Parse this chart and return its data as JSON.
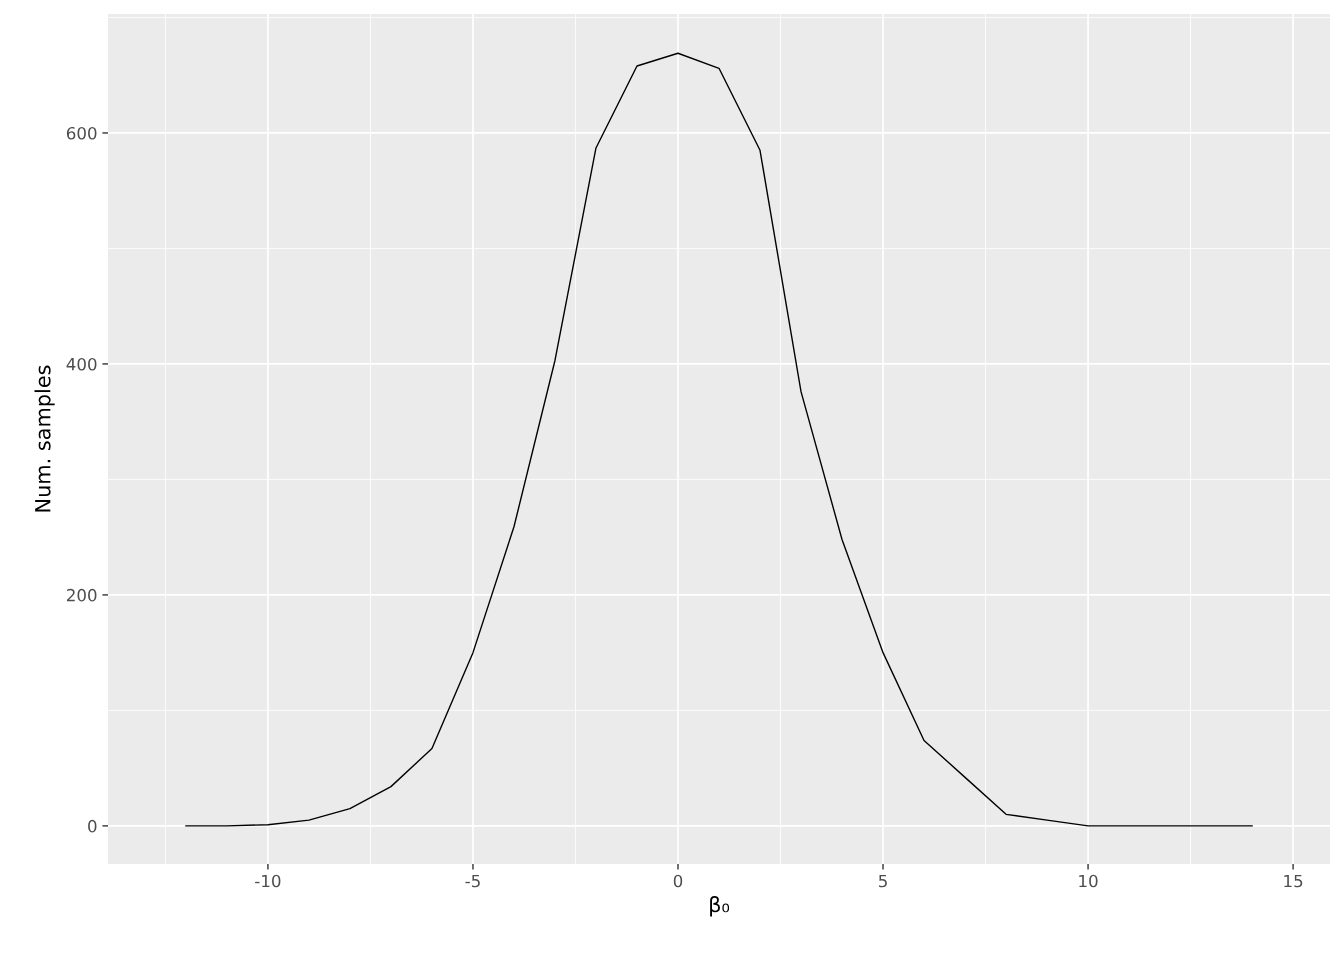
{
  "chart_data": {
    "type": "line",
    "xlabel": "β₀",
    "ylabel": "Num. samples",
    "x": [
      -12,
      -11,
      -10,
      -9,
      -8,
      -7,
      -6,
      -5,
      -4,
      -3,
      -2,
      -1,
      0,
      1,
      2,
      3,
      4,
      5,
      6,
      7,
      8,
      9,
      10,
      11,
      12,
      13,
      14
    ],
    "series": [
      {
        "color": "#000000",
        "values": [
          0,
          0,
          1,
          5,
          15,
          34,
          67,
          150,
          259,
          403,
          587,
          658,
          669,
          656,
          585,
          376,
          248,
          150,
          74,
          42,
          10,
          5,
          0,
          0,
          0,
          0,
          0
        ]
      }
    ],
    "xlim": [
      -13.9,
      15.9
    ],
    "ylim": [
      -33,
      703
    ],
    "xticks": [
      {
        "value": -10,
        "label": "-10"
      },
      {
        "value": -5,
        "label": "-5"
      },
      0,
      5,
      10,
      15
    ],
    "yticks": [
      0,
      200,
      400,
      600
    ],
    "grid": true,
    "marker": "none",
    "line_style": "solid"
  }
}
